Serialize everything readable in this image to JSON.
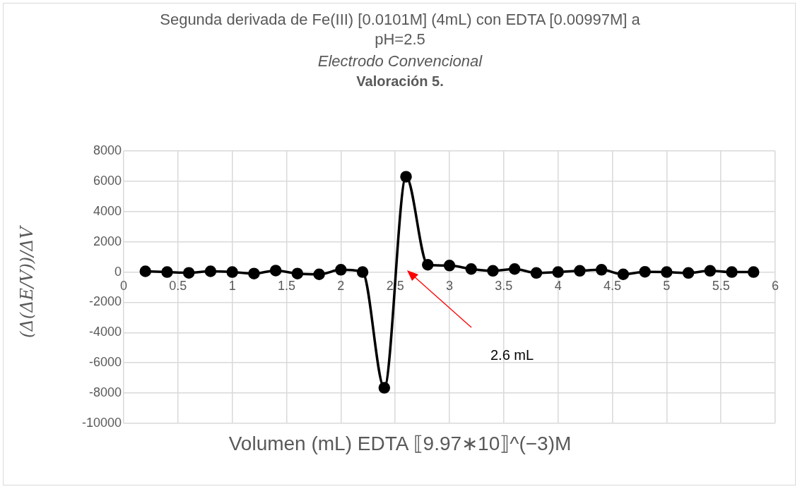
{
  "chart_data": {
    "type": "line",
    "title": "Segunda derivada de Fe(III) [0.0101M] (4mL) con EDTA [0.00997M] a pH=2.5",
    "subtitle": "Electrodo Convencional",
    "xlabel": "Volumen (mL) EDTA ⟦9.97∗10⟧^(−3)M",
    "ylabel": "(Δ(ΔE/V))/ΔV",
    "x": [
      0.2,
      0.4,
      0.6,
      0.8,
      1.0,
      1.2,
      1.4,
      1.6,
      1.8,
      2.0,
      2.2,
      2.4,
      2.6,
      2.8,
      3.0,
      3.2,
      3.4,
      3.6,
      3.8,
      4.0,
      4.2,
      4.4,
      4.6,
      4.8,
      5.0,
      5.2,
      5.4,
      5.6,
      5.8
    ],
    "series": [
      {
        "color": "#000000",
        "values": [
          50,
          0,
          -50,
          50,
          0,
          -100,
          100,
          -100,
          -150,
          150,
          0,
          -7650,
          6300,
          480,
          430,
          200,
          80,
          200,
          -60,
          0,
          80,
          150,
          -150,
          20,
          0,
          -60,
          80,
          0,
          0
        ]
      }
    ],
    "xlim": [
      0,
      6
    ],
    "xticks": [
      0,
      0.5,
      1,
      1.5,
      2,
      2.5,
      3,
      3.5,
      4,
      4.5,
      5,
      5.5,
      6
    ],
    "ylim": [
      -10000,
      8000
    ],
    "yticks": [
      -10000,
      -8000,
      -6000,
      -4000,
      -2000,
      0,
      2000,
      4000,
      6000,
      8000
    ],
    "grid": true,
    "legend": false,
    "marker": "circle",
    "line_style": "solid",
    "annotations": [
      "Valoración 5.",
      "2.6 mL"
    ]
  }
}
